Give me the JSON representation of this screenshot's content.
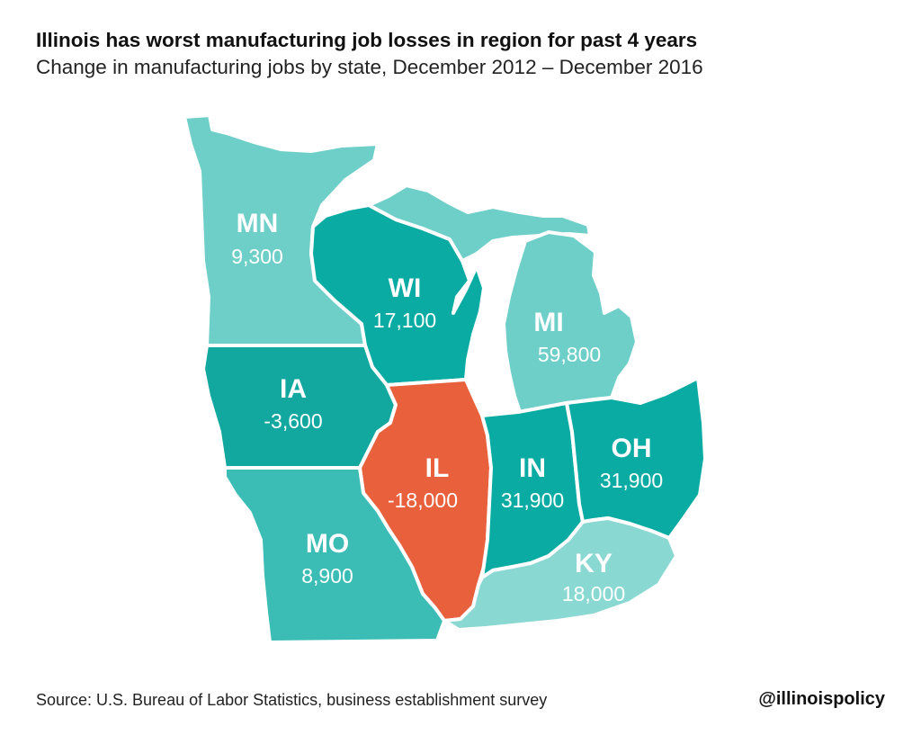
{
  "header": {
    "title": "Illinois has worst manufacturing job losses in region for past 4 years",
    "subtitle": "Change in manufacturing jobs by state, December 2012 – December 2016"
  },
  "colors": {
    "lake": "#ffffff",
    "highlight": "#e8603c"
  },
  "states": [
    {
      "id": "MN",
      "abbr": "MN",
      "value_label": "9,300",
      "value": 9300,
      "color": "#6ecfc8"
    },
    {
      "id": "WI",
      "abbr": "WI",
      "value_label": "17,100",
      "value": 17100,
      "color": "#0aaba3"
    },
    {
      "id": "MI",
      "abbr": "MI",
      "value_label": "59,800",
      "value": 59800,
      "color": "#6ecfc8"
    },
    {
      "id": "IA",
      "abbr": "IA",
      "value_label": "-3,600",
      "value": -3600,
      "color": "#12a89f"
    },
    {
      "id": "IL",
      "abbr": "IL",
      "value_label": "-18,000",
      "value": -18000,
      "color": "#e8603c"
    },
    {
      "id": "IN",
      "abbr": "IN",
      "value_label": "31,900",
      "value": 31900,
      "color": "#0aaba3"
    },
    {
      "id": "OH",
      "abbr": "OH",
      "value_label": "31,900",
      "value": 31900,
      "color": "#0aaba3"
    },
    {
      "id": "MO",
      "abbr": "MO",
      "value_label": "8,900",
      "value": 8900,
      "color": "#3bbdb6"
    },
    {
      "id": "KY",
      "abbr": "KY",
      "value_label": "18,000",
      "value": 18000,
      "color": "#8ad8d2"
    }
  ],
  "footer": {
    "source": "Source: U.S. Bureau of Labor Statistics, business establishment survey",
    "handle": "@illinoispolicy"
  }
}
